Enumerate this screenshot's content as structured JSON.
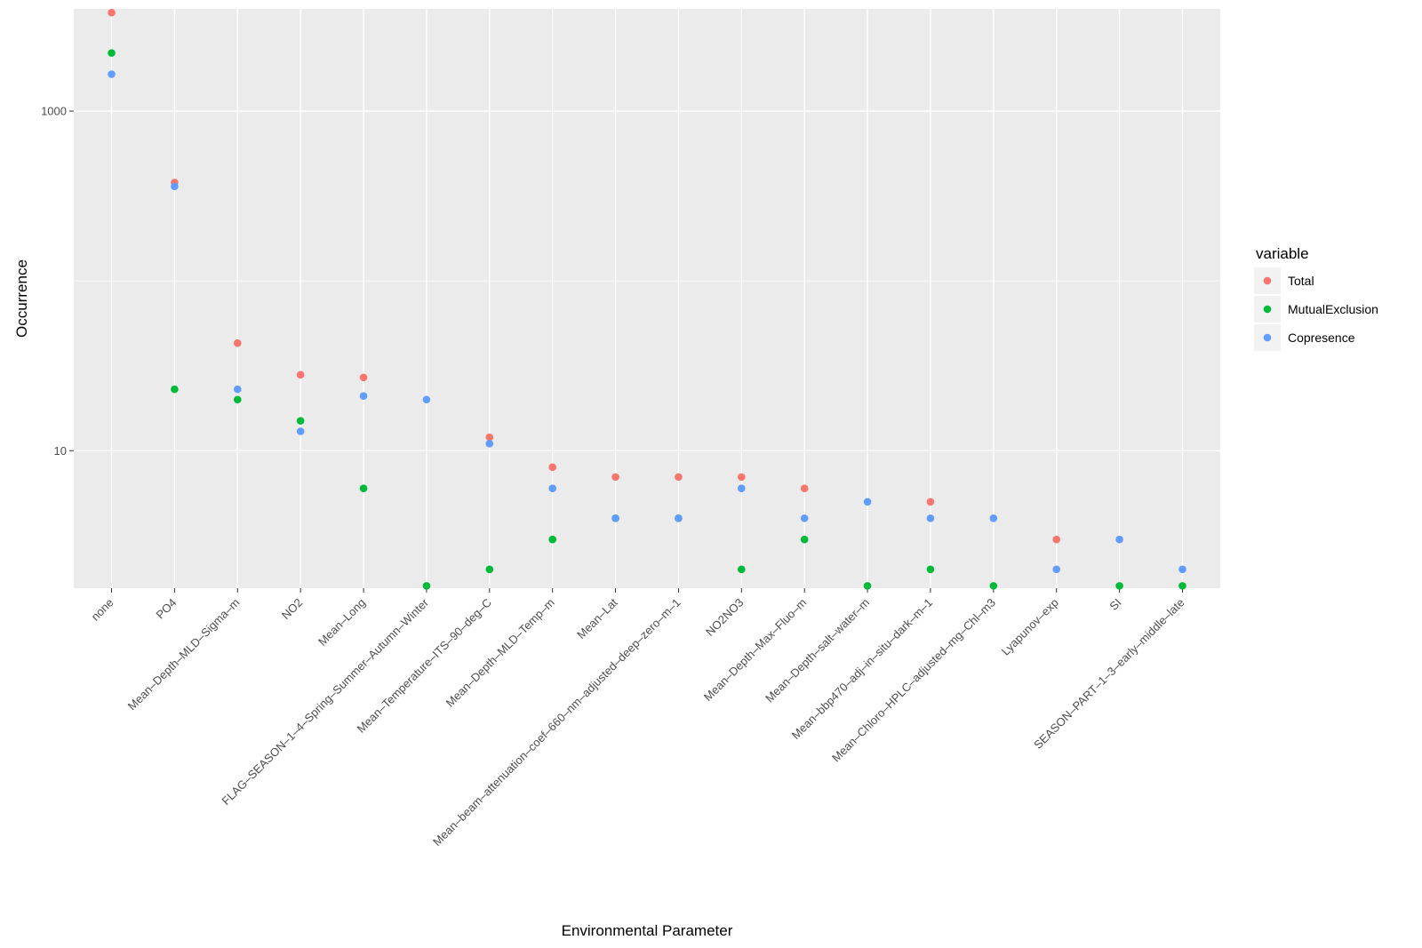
{
  "chart_data": {
    "type": "scatter",
    "xlabel": "Environmental Parameter",
    "ylabel": "Occurrence",
    "y_scale": "log10",
    "ylim": [
      1.55,
      4000
    ],
    "y_ticks": [
      10,
      1000
    ],
    "y_tick_labels": [
      "10",
      "1000"
    ],
    "grid": true,
    "legend": {
      "title": "variable",
      "position": "right"
    },
    "categories": [
      "none",
      "PO4",
      "Mean–Depth–MLD–Sigma–m",
      "NO2",
      "Mean–Long",
      "FLAG–SEASON–1–4–Spring–Summer–Autumn–Winter",
      "Mean–Temperature–ITS–90–deg–C",
      "Mean–Depth–MLD–Temp–m",
      "Mean–Lat",
      "Mean–beam–attenuation–coef–660–nm–adjusted–deep–zero–m–1",
      "NO2NO3",
      "Mean–Depth–Max–Fluo–m",
      "Mean–Depth–salt–water–m",
      "Mean–bbp470–adj–in–situ–dark–m–1",
      "Mean–Chloro–HPLC–adjusted–mg–Chl–m3",
      "Lyapunov–exp",
      "SI",
      "SEASON–PART–1–3–early–middle–late"
    ],
    "series": [
      {
        "name": "Total",
        "color": "#F8766D",
        "values": [
          3800,
          380,
          43,
          28,
          27,
          null,
          12,
          8,
          7,
          7,
          7,
          6,
          null,
          5,
          null,
          3,
          null,
          null
        ]
      },
      {
        "name": "MutualExclusion",
        "color": "#00BA38",
        "values": [
          2200,
          23,
          20,
          15,
          6,
          1.6,
          2,
          3,
          4,
          4,
          2,
          3,
          1.6,
          2,
          1.6,
          null,
          1.6,
          1.6
        ]
      },
      {
        "name": "Copresence",
        "color": "#619CFF",
        "values": [
          1650,
          360,
          23,
          13,
          21,
          20,
          11,
          6,
          4,
          4,
          6,
          4,
          5,
          4,
          4,
          2,
          3,
          2
        ]
      }
    ]
  }
}
